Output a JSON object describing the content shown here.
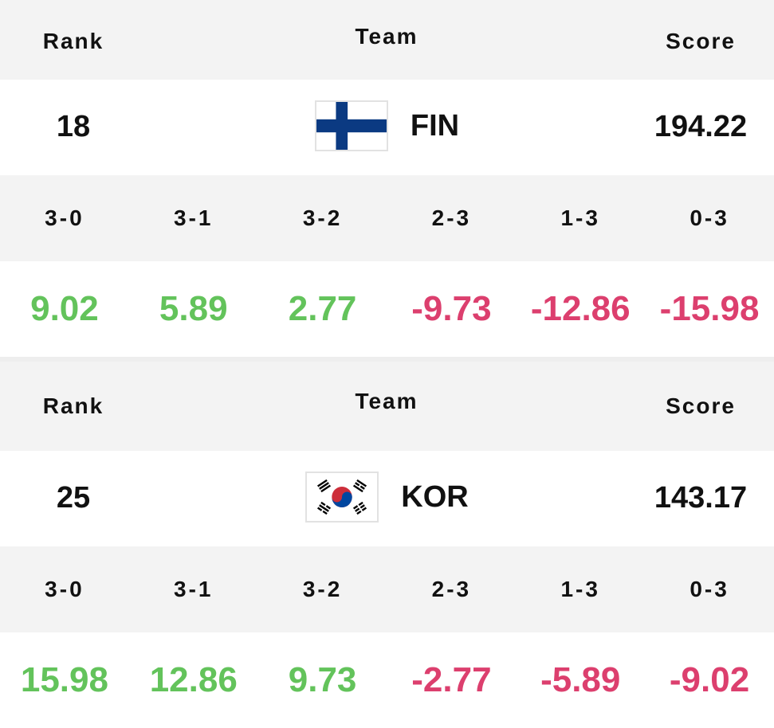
{
  "colors": {
    "positive": "#63c35b",
    "negative": "#dc3f6e",
    "header_bg": "#f3f3f3"
  },
  "blocks": [
    {
      "headers": {
        "rank": "Rank",
        "team": "Team",
        "score": "Score"
      },
      "rank": "18",
      "flag_icon": "finland-flag-icon",
      "team": "FIN",
      "score": "194.22",
      "sets": [
        "3-0",
        "3-1",
        "3-2",
        "2-3",
        "1-3",
        "0-3"
      ],
      "values": [
        "9.02",
        "5.89",
        "2.77",
        "-9.73",
        "-12.86",
        "-15.98"
      ]
    },
    {
      "headers": {
        "rank": "Rank",
        "team": "Team",
        "score": "Score"
      },
      "rank": "25",
      "flag_icon": "south-korea-flag-icon",
      "team": "KOR",
      "score": "143.17",
      "sets": [
        "3-0",
        "3-1",
        "3-2",
        "2-3",
        "1-3",
        "0-3"
      ],
      "values": [
        "15.98",
        "12.86",
        "9.73",
        "-2.77",
        "-5.89",
        "-9.02"
      ]
    }
  ]
}
